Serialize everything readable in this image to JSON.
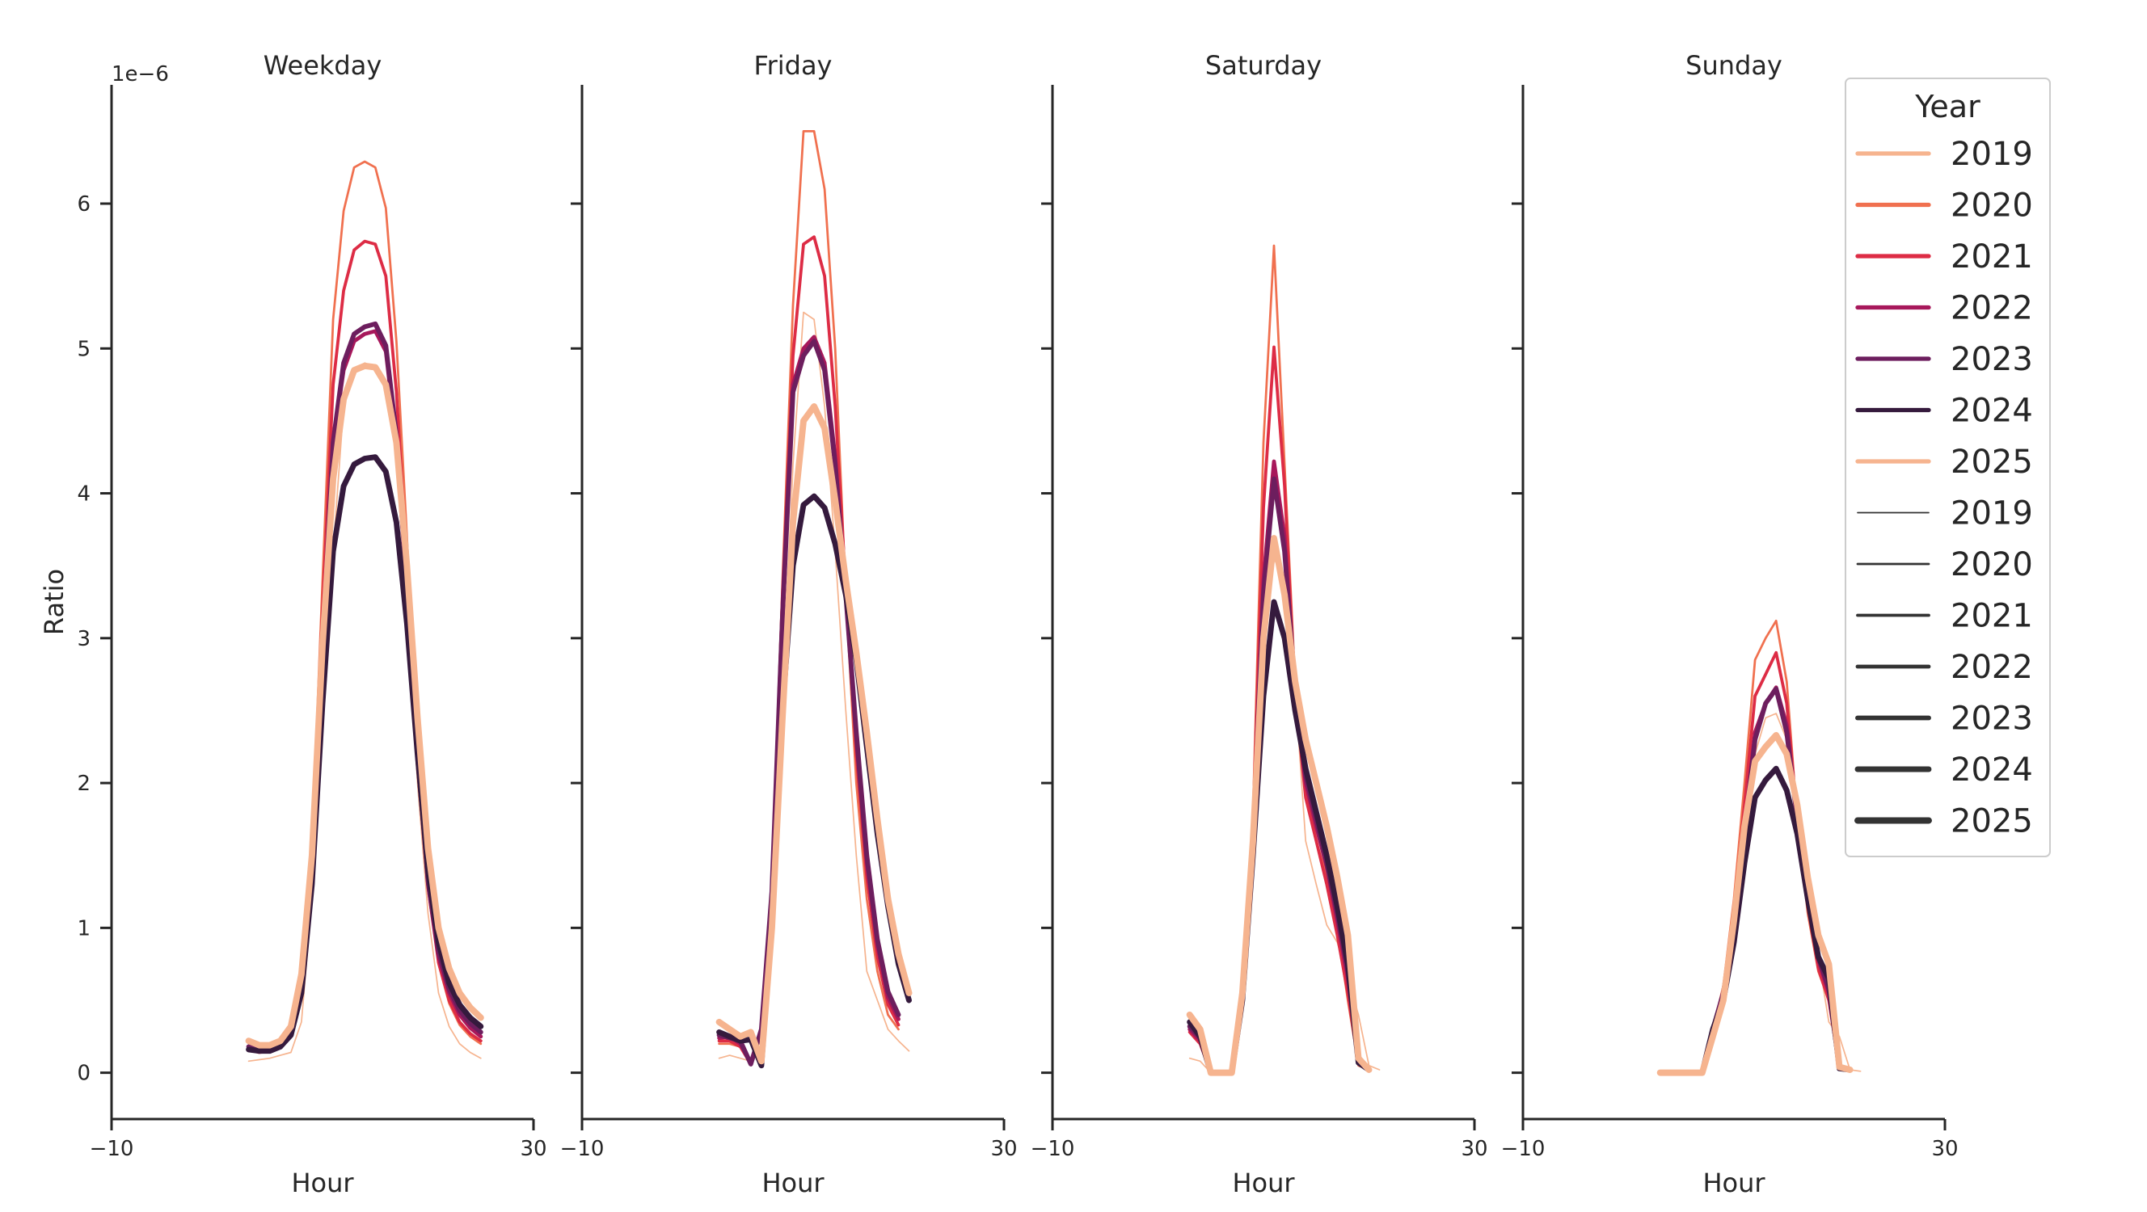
{
  "chart_data": {
    "type": "line",
    "ylabel": "Ratio",
    "y_offset_text": "1e−6",
    "ylim": [
      -0.32,
      6.82
    ],
    "yticks": [
      0,
      1,
      2,
      3,
      4,
      5,
      6
    ],
    "legend": {
      "title": "Year",
      "placement": "top-right",
      "color_entries": [
        {
          "label": "2019",
          "color": "#f6b48f"
        },
        {
          "label": "2020",
          "color": "#f0704f"
        },
        {
          "label": "2021",
          "color": "#dd2c45"
        },
        {
          "label": "2022",
          "color": "#a7185b"
        },
        {
          "label": "2023",
          "color": "#6d1e5e"
        },
        {
          "label": "2024",
          "color": "#351a3d"
        },
        {
          "label": "2025",
          "color": "#f6b48f"
        }
      ],
      "width_entries": [
        {
          "label": "2019",
          "width": 1.5
        },
        {
          "label": "2020",
          "width": 2.4
        },
        {
          "label": "2021",
          "width": 3.3
        },
        {
          "label": "2022",
          "width": 4.2
        },
        {
          "label": "2023",
          "width": 5.1
        },
        {
          "label": "2024",
          "width": 6.0
        },
        {
          "label": "2025",
          "width": 6.9
        }
      ]
    },
    "panels": [
      {
        "title": "Weekday",
        "xlabel": "Hour",
        "xlim": [
          -10,
          30
        ],
        "xticks": [
          -10,
          30
        ],
        "series": [
          {
            "year": "2019",
            "values": [
              0.08,
              0.09,
              0.1,
              0.12,
              0.14,
              0.35,
              1.2,
              2.4,
              3.6,
              4.6,
              4.85,
              4.9,
              4.87,
              4.75,
              4.3,
              3.2,
              2.0,
              1.1,
              0.55,
              0.32,
              0.2,
              0.14,
              0.1
            ]
          },
          {
            "year": "2020",
            "values": [
              0.15,
              0.14,
              0.15,
              0.18,
              0.28,
              0.6,
              1.55,
              3.4,
              5.2,
              5.95,
              6.25,
              6.29,
              6.25,
              5.97,
              5.05,
              3.7,
              2.25,
              1.3,
              0.75,
              0.48,
              0.33,
              0.25,
              0.2
            ]
          },
          {
            "year": "2021",
            "values": [
              0.16,
              0.14,
              0.15,
              0.18,
              0.28,
              0.6,
              1.5,
              3.2,
              4.75,
              5.4,
              5.68,
              5.74,
              5.72,
              5.5,
              4.7,
              3.5,
              2.2,
              1.28,
              0.76,
              0.5,
              0.35,
              0.27,
              0.22
            ]
          },
          {
            "year": "2022",
            "values": [
              0.17,
              0.15,
              0.16,
              0.19,
              0.3,
              0.62,
              1.45,
              3.0,
              4.35,
              4.85,
              5.05,
              5.1,
              5.12,
              4.98,
              4.35,
              3.3,
              2.15,
              1.3,
              0.8,
              0.55,
              0.4,
              0.31,
              0.25
            ]
          },
          {
            "year": "2023",
            "values": [
              0.18,
              0.16,
              0.17,
              0.2,
              0.3,
              0.62,
              1.45,
              2.95,
              4.35,
              4.9,
              5.1,
              5.15,
              5.17,
              5.02,
              4.4,
              3.35,
              2.2,
              1.33,
              0.84,
              0.58,
              0.43,
              0.34,
              0.28
            ]
          },
          {
            "year": "2024",
            "values": [
              0.16,
              0.15,
              0.15,
              0.18,
              0.26,
              0.55,
              1.3,
              2.55,
              3.6,
              4.05,
              4.2,
              4.24,
              4.25,
              4.15,
              3.8,
              3.1,
              2.2,
              1.4,
              0.9,
              0.62,
              0.47,
              0.38,
              0.32
            ]
          },
          {
            "year": "2025",
            "values": [
              0.22,
              0.19,
              0.19,
              0.22,
              0.32,
              0.68,
              1.5,
              2.95,
              4.1,
              4.65,
              4.85,
              4.88,
              4.87,
              4.75,
              4.35,
              3.5,
              2.45,
              1.55,
              1.0,
              0.72,
              0.55,
              0.45,
              0.38
            ]
          }
        ]
      },
      {
        "title": "Friday",
        "xlabel": "Hour",
        "xlim": [
          -10,
          30
        ],
        "xticks": [
          -10,
          30
        ],
        "series": [
          {
            "year": "2019",
            "values": [
              0.1,
              0.12,
              0.1,
              0.08,
              0.15,
              1.0,
              2.5,
              4.2,
              5.25,
              5.2,
              4.6,
              3.6,
              2.5,
              1.5,
              0.7,
              0.5,
              0.3,
              0.22,
              0.15
            ]
          },
          {
            "year": "2020",
            "values": [
              0.2,
              0.2,
              0.18,
              0.06,
              0.3,
              1.3,
              3.4,
              5.3,
              6.5,
              6.5,
              6.1,
              5.0,
              3.3,
              2.0,
              1.2,
              0.7,
              0.4,
              0.3
            ]
          },
          {
            "year": "2021",
            "values": [
              0.22,
              0.22,
              0.18,
              0.06,
              0.3,
              1.3,
              3.3,
              4.95,
              5.72,
              5.77,
              5.5,
              4.6,
              3.35,
              2.2,
              1.35,
              0.8,
              0.47,
              0.33
            ]
          },
          {
            "year": "2022",
            "values": [
              0.24,
              0.25,
              0.2,
              0.07,
              0.3,
              1.25,
              3.1,
              4.75,
              5.0,
              5.08,
              4.9,
              4.25,
              3.3,
              2.3,
              1.45,
              0.88,
              0.52,
              0.37
            ]
          },
          {
            "year": "2023",
            "values": [
              0.26,
              0.24,
              0.22,
              0.06,
              0.3,
              1.25,
              3.15,
              4.7,
              4.95,
              5.05,
              4.85,
              4.2,
              3.3,
              2.35,
              1.5,
              0.92,
              0.56,
              0.4
            ]
          },
          {
            "year": "2024",
            "values": [
              0.28,
              0.25,
              0.22,
              0.23,
              0.05,
              1.05,
              2.5,
              3.5,
              3.92,
              3.98,
              3.9,
              3.65,
              3.3,
              2.85,
              2.25,
              1.65,
              1.15,
              0.75,
              0.5
            ]
          },
          {
            "year": "2025",
            "values": [
              0.35,
              0.3,
              0.25,
              0.28,
              0.08,
              1.0,
              2.45,
              3.8,
              4.5,
              4.6,
              4.45,
              3.95,
              3.4,
              2.9,
              2.35,
              1.75,
              1.2,
              0.82,
              0.55
            ]
          }
        ]
      },
      {
        "title": "Saturday",
        "xlabel": "Hour",
        "xlim": [
          -10,
          30
        ],
        "xticks": [
          -10,
          30
        ],
        "series": [
          {
            "year": "2019",
            "values": [
              0.1,
              0.08,
              0.0,
              0.0,
              0.0,
              0.5,
              1.5,
              3.0,
              3.55,
              3.4,
              2.65,
              1.6,
              1.3,
              1.02,
              0.9,
              0.65,
              0.4,
              0.05,
              0.02
            ]
          },
          {
            "year": "2020",
            "values": [
              0.3,
              0.22,
              0.0,
              0.0,
              0.0,
              0.6,
              1.8,
              4.35,
              5.71,
              4.2,
              2.7,
              2.0,
              1.6,
              1.35,
              1.0,
              0.5,
              0.05,
              0.02
            ]
          },
          {
            "year": "2021",
            "values": [
              0.28,
              0.2,
              0.0,
              0.0,
              0.0,
              0.6,
              1.7,
              3.9,
              5.01,
              4.05,
              2.6,
              1.9,
              1.6,
              1.3,
              0.95,
              0.55,
              0.06,
              0.02
            ]
          },
          {
            "year": "2022",
            "values": [
              0.3,
              0.22,
              0.0,
              0.0,
              0.0,
              0.55,
              1.65,
              3.4,
              4.22,
              3.7,
              2.6,
              2.0,
              1.7,
              1.42,
              1.05,
              0.65,
              0.07,
              0.02
            ]
          },
          {
            "year": "2023",
            "values": [
              0.32,
              0.24,
              0.0,
              0.0,
              0.0,
              0.55,
              1.6,
              3.3,
              4.1,
              3.6,
              2.65,
              2.05,
              1.75,
              1.45,
              1.1,
              0.7,
              0.07,
              0.02
            ]
          },
          {
            "year": "2024",
            "values": [
              0.35,
              0.25,
              0.0,
              0.0,
              0.0,
              0.5,
              1.5,
              2.6,
              3.25,
              3.0,
              2.5,
              2.1,
              1.8,
              1.5,
              1.15,
              0.75,
              0.07,
              0.02
            ]
          },
          {
            "year": "2025",
            "values": [
              0.4,
              0.3,
              0.0,
              0.0,
              0.0,
              0.55,
              1.6,
              3.0,
              3.69,
              3.3,
              2.7,
              2.3,
              2.0,
              1.7,
              1.35,
              0.95,
              0.1,
              0.02
            ]
          }
        ]
      },
      {
        "title": "Sunday",
        "xlabel": "Hour",
        "xlim": [
          -10,
          30
        ],
        "xticks": [
          -10,
          30
        ],
        "series": [
          {
            "year": "2019",
            "values": [
              0.0,
              0.0,
              0.0,
              0.0,
              0.0,
              0.2,
              0.45,
              0.95,
              1.6,
              2.2,
              2.45,
              2.48,
              2.3,
              1.8,
              1.2,
              0.8,
              0.35,
              0.25,
              0.02,
              0.01
            ]
          },
          {
            "year": "2020",
            "values": [
              0.0,
              0.0,
              0.0,
              0.0,
              0.0,
              0.3,
              0.6,
              1.2,
              2.0,
              2.85,
              3.0,
              3.12,
              2.7,
              1.75,
              1.1,
              0.7,
              0.5,
              0.03,
              0.02
            ]
          },
          {
            "year": "2021",
            "values": [
              0.0,
              0.0,
              0.0,
              0.0,
              0.0,
              0.3,
              0.55,
              1.1,
              1.85,
              2.6,
              2.75,
              2.9,
              2.55,
              1.75,
              1.15,
              0.72,
              0.5,
              0.03,
              0.02
            ]
          },
          {
            "year": "2022",
            "values": [
              0.0,
              0.0,
              0.0,
              0.0,
              0.0,
              0.3,
              0.55,
              1.05,
              1.7,
              2.35,
              2.55,
              2.66,
              2.4,
              1.75,
              1.2,
              0.78,
              0.55,
              0.03,
              0.02
            ]
          },
          {
            "year": "2023",
            "values": [
              0.0,
              0.0,
              0.0,
              0.0,
              0.0,
              0.3,
              0.55,
              1.0,
              1.65,
              2.3,
              2.55,
              2.65,
              2.35,
              1.75,
              1.22,
              0.8,
              0.58,
              0.03,
              0.02
            ]
          },
          {
            "year": "2024",
            "values": [
              0.0,
              0.0,
              0.0,
              0.0,
              0.0,
              0.3,
              0.5,
              0.9,
              1.45,
              1.9,
              2.02,
              2.1,
              1.95,
              1.65,
              1.2,
              0.8,
              0.65,
              0.03,
              0.02
            ]
          },
          {
            "year": "2025",
            "values": [
              0.0,
              0.0,
              0.0,
              0.0,
              0.0,
              0.25,
              0.5,
              1.05,
              1.7,
              2.15,
              2.25,
              2.33,
              2.2,
              1.85,
              1.35,
              0.95,
              0.75,
              0.04,
              0.02
            ]
          }
        ]
      }
    ]
  }
}
